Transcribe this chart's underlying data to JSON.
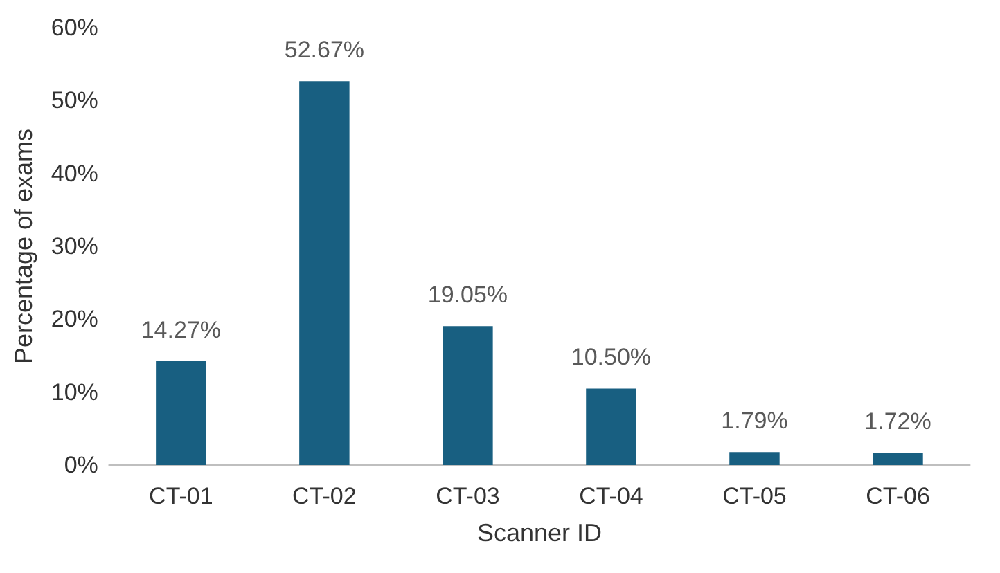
{
  "chart_data": {
    "type": "bar",
    "xlabel": "Scanner ID",
    "ylabel": "Percentage of exams",
    "categories": [
      "CT-01",
      "CT-02",
      "CT-03",
      "CT-04",
      "CT-05",
      "CT-06"
    ],
    "values": [
      14.27,
      52.67,
      19.05,
      10.5,
      1.79,
      1.72
    ],
    "value_labels": [
      "14.27%",
      "52.67%",
      "19.05%",
      "10.50%",
      "1.79%",
      "1.72%"
    ],
    "color": "#185f81",
    "ylim": [
      0,
      60
    ],
    "yticks": [
      {
        "value": 0,
        "label": "0%"
      },
      {
        "value": 10,
        "label": "10%"
      },
      {
        "value": 20,
        "label": "20%"
      },
      {
        "value": 30,
        "label": "30%"
      },
      {
        "value": 40,
        "label": "40%"
      },
      {
        "value": 50,
        "label": "50%"
      },
      {
        "value": 60,
        "label": "60%"
      }
    ],
    "grid": false
  }
}
